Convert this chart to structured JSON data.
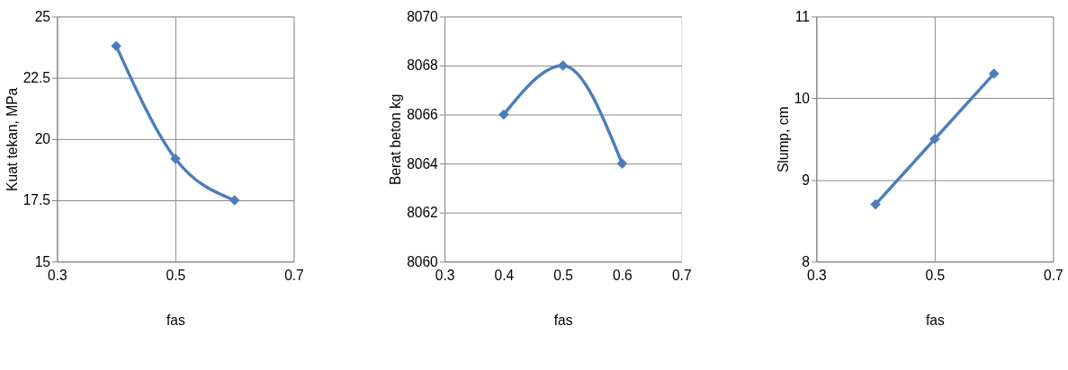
{
  "chart_data": [
    {
      "type": "line",
      "xlabel": "fas",
      "ylabel": "Kuat tekan, MPa",
      "x": [
        0.4,
        0.5,
        0.6
      ],
      "series": [
        {
          "color": "#4a7ebb",
          "values": [
            23.8,
            19.2,
            17.5
          ]
        }
      ],
      "xlim": [
        0.3,
        0.7
      ],
      "xticks": [
        0.3,
        0.5,
        0.7
      ],
      "ylim": [
        15,
        25
      ],
      "yticks": [
        15,
        17.5,
        20,
        22.5,
        25
      ],
      "grid": true,
      "marker": "diamond",
      "line_style": "solid"
    },
    {
      "type": "line",
      "xlabel": "fas",
      "ylabel": "Berat beton kg",
      "x": [
        0.4,
        0.5,
        0.6
      ],
      "series": [
        {
          "color": "#4a7ebb",
          "values": [
            8066,
            8068,
            8064
          ]
        }
      ],
      "xlim": [
        0.3,
        0.7
      ],
      "xticks": [
        0.3,
        0.4,
        0.5,
        0.6,
        0.7
      ],
      "ylim": [
        8060,
        8070
      ],
      "yticks": [
        8060,
        8062,
        8064,
        8066,
        8068,
        8070
      ],
      "grid": "y",
      "marker": "diamond",
      "line_style": "solid"
    },
    {
      "type": "line",
      "xlabel": "fas",
      "ylabel": "Slump, cm",
      "x": [
        0.4,
        0.5,
        0.6
      ],
      "series": [
        {
          "color": "#4a7ebb",
          "values": [
            8.7,
            9.5,
            10.3
          ]
        }
      ],
      "xlim": [
        0.3,
        0.7
      ],
      "xticks": [
        0.3,
        0.5,
        0.7
      ],
      "ylim": [
        8,
        11
      ],
      "yticks": [
        8,
        9,
        10,
        11
      ],
      "grid": true,
      "marker": "diamond",
      "line_style": "solid"
    }
  ]
}
